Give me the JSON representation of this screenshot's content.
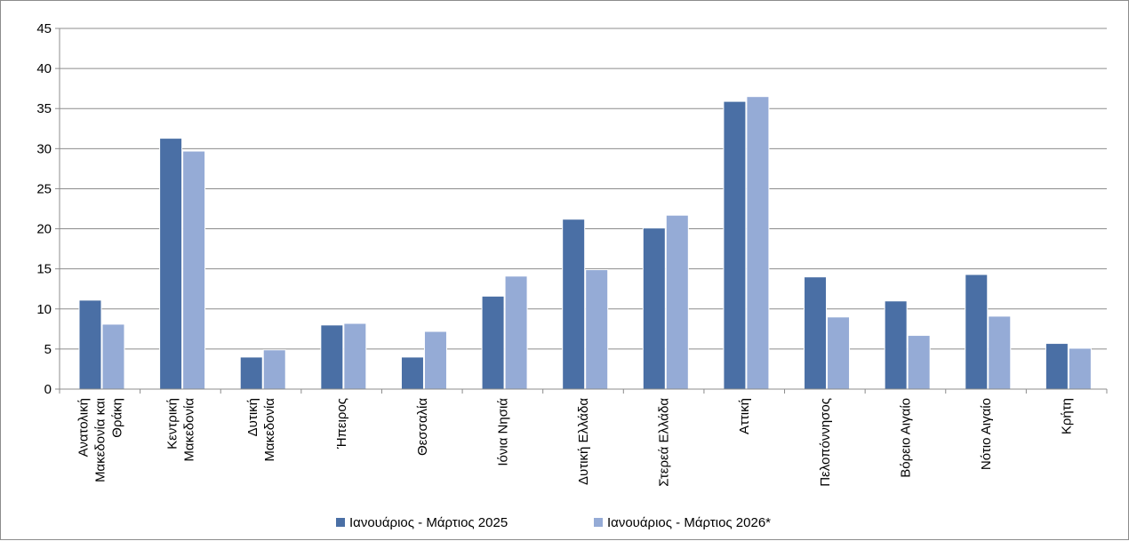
{
  "chart_data": {
    "type": "bar",
    "title": "",
    "xlabel": "",
    "ylabel": "",
    "ylim": [
      0,
      45
    ],
    "yticks": [
      "0",
      "5",
      "10",
      "15",
      "20",
      "25",
      "30",
      "35",
      "40",
      "45"
    ],
    "grid": true,
    "legend_position": "bottom",
    "categories": [
      [
        "Ανατολική",
        "Μακεδονία και",
        "Θράκη"
      ],
      [
        "Κεντρική",
        "Μακεδονία"
      ],
      [
        "Δυτική",
        "Μακεδονία"
      ],
      [
        "Ήπειρος"
      ],
      [
        "Θεσσαλία"
      ],
      [
        "Ιόνια Νησιά"
      ],
      [
        "Δυτική Ελλάδα"
      ],
      [
        "Στερεά Ελλάδα"
      ],
      [
        "Αττική"
      ],
      [
        "Πελοπόννησος"
      ],
      [
        "Βόρειο Αιγαίο"
      ],
      [
        "Νότιο Αιγαίο"
      ],
      [
        "Κρήτη"
      ]
    ],
    "series": [
      {
        "name": "Ιανουάριος - Μάρτιος 2025",
        "color": "#4a6fa5",
        "values": [
          11.1,
          31.3,
          4.0,
          8.0,
          4.0,
          11.6,
          21.2,
          20.1,
          35.9,
          14.0,
          11.0,
          14.3,
          5.7
        ]
      },
      {
        "name": "Ιανουάριος - Μάρτιος 2026*",
        "color": "#95abd6",
        "values": [
          8.1,
          29.7,
          4.9,
          8.2,
          7.2,
          14.1,
          14.9,
          21.7,
          36.5,
          9.0,
          6.7,
          9.1,
          5.1
        ]
      }
    ]
  }
}
